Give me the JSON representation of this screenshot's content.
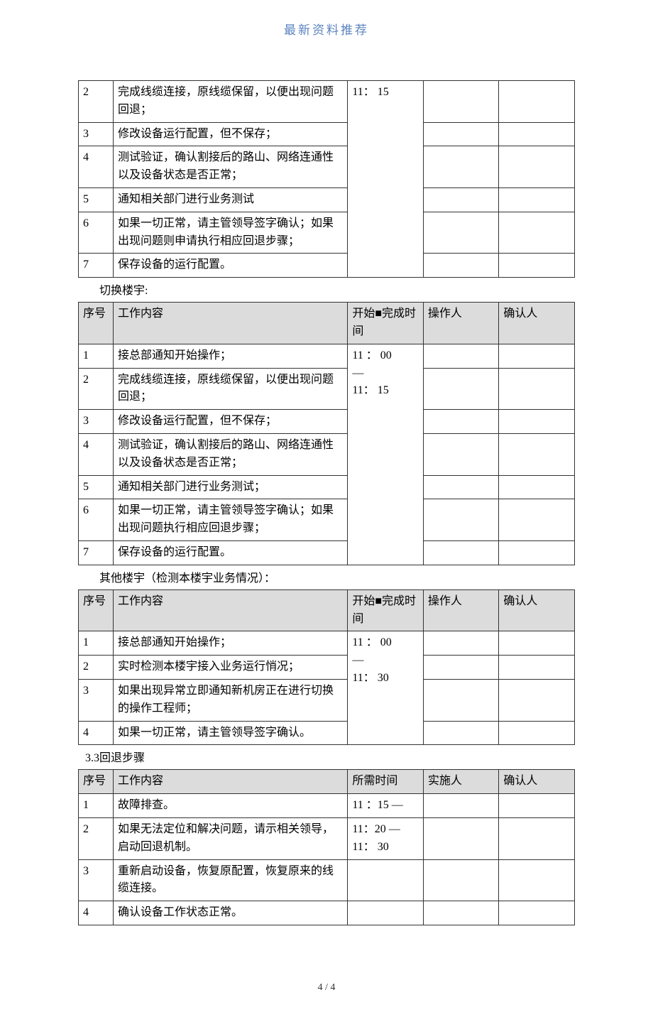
{
  "header": "最新资料推荐",
  "footer": "4 / 4",
  "tableHeaders": {
    "idx": "序号",
    "work": "工作内容",
    "time_start_complete": "开始■完成时间",
    "time_required": "所需时间",
    "operator": "操作人",
    "implementer": "实施人",
    "confirmer": "确认人"
  },
  "table1": {
    "time_merged": "11： 15",
    "rows": [
      {
        "idx": "2",
        "work": "完成线缆连接，原线缆保留，以便出现问题回退；"
      },
      {
        "idx": "3",
        "work": "修改设备运行配置，但不保存；"
      },
      {
        "idx": "4",
        "work": "测试验证，确认割接后的路山、网络连通性以及设备状态是否正常；"
      },
      {
        "idx": "5",
        "work": "通知相关部门进行业务测试"
      },
      {
        "idx": "6",
        "work": "如果一切正常，请主管领导签字确认；如果出现问题则申请执行相应回退步骤；"
      },
      {
        "idx": "7",
        "work": "保存设备的运行配置。"
      }
    ]
  },
  "caption2": "切换楼宇:",
  "table2": {
    "time_line1": "11 ： 00",
    "time_line2": "—",
    "time_line3": "11： 15",
    "rows": [
      {
        "idx": "1",
        "work": "接总部通知开始操作；"
      },
      {
        "idx": "2",
        "work": "完成线缆连接，原线缆保留，以便出现问题回退；"
      },
      {
        "idx": "3",
        "work": "修改设备运行配置，但不保存；"
      },
      {
        "idx": "4",
        "work": "测试验证，确认割接后的路山、网络连通性以及设备状态是否正常；"
      },
      {
        "idx": "5",
        "work": "通知相关部门进行业务测试；"
      },
      {
        "idx": "6",
        "work": "如果一切正常，请主管领导签字确认；如果出现问题执行相应回退步骤；"
      },
      {
        "idx": "7",
        "work": "保存设备的运行配置。"
      }
    ]
  },
  "caption3": "其他楼宇（检测本楼宇业务情况）：",
  "table3": {
    "time_line1": "11 ： 00",
    "time_line2": "—",
    "time_line3": "11： 30",
    "rows": [
      {
        "idx": "1",
        "work": "接总部通知开始操作；"
      },
      {
        "idx": "2",
        "work": "实时检测本楼宇接入业务运行悄况；"
      },
      {
        "idx": "3",
        "work": "如果出现异常立即通知新机房正在进行切换的操作工程师；"
      },
      {
        "idx": "4",
        "work": "如果一切正常，请主管领导签字确认。"
      }
    ]
  },
  "caption4": "3.3回退步骤",
  "table4": {
    "rows": [
      {
        "idx": "1",
        "work": "故障排查。",
        "time": "11 ：15 —"
      },
      {
        "idx": "2",
        "work": "如果无法定位和解决问题，请示相关领导，启动回退机制。",
        "time": "11：20 — 11： 30"
      },
      {
        "idx": "3",
        "work": "重新启动设备，恢复原配置，恢复原来的线缆连接。",
        "time": ""
      },
      {
        "idx": "4",
        "work": "确认设备工作状态正常。",
        "time": ""
      }
    ]
  }
}
